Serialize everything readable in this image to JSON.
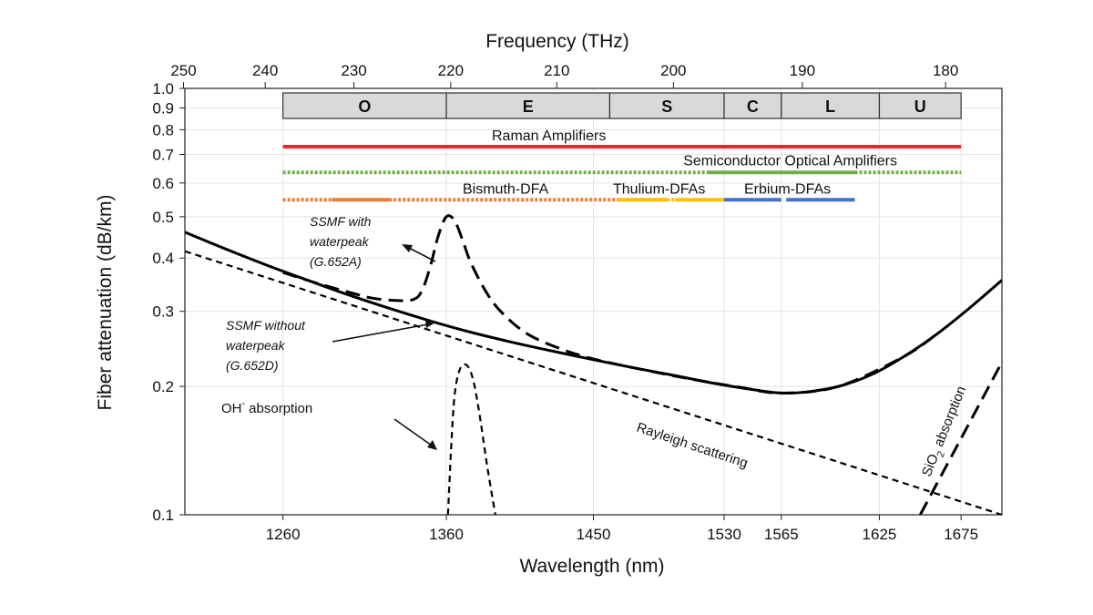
{
  "chart_data": {
    "type": "line",
    "xlabel": "Wavelength (nm)",
    "ylabel": "Fiber attenuation (dB/km)",
    "top_axis_label": "Frequency (THz)",
    "xlim": [
      1200,
      1700
    ],
    "ylim": [
      0.1,
      1.0
    ],
    "y_scale": "log",
    "x_ticks": [
      {
        "value": 1260,
        "label": "1260"
      },
      {
        "value": 1360,
        "label": "1360"
      },
      {
        "value": 1450,
        "label": "1450"
      },
      {
        "value": 1530,
        "label": "1530"
      },
      {
        "value": 1565,
        "label": "1565"
      },
      {
        "value": 1625,
        "label": "1625"
      },
      {
        "value": 1675,
        "label": "1675"
      }
    ],
    "y_ticks": [
      {
        "value": 0.1,
        "label": "0.1"
      },
      {
        "value": 0.2,
        "label": "0.2"
      },
      {
        "value": 0.3,
        "label": "0.3"
      },
      {
        "value": 0.4,
        "label": "0.4"
      },
      {
        "value": 0.5,
        "label": "0.5"
      },
      {
        "value": 0.6,
        "label": "0.6"
      },
      {
        "value": 0.7,
        "label": "0.7"
      },
      {
        "value": 0.8,
        "label": "0.8"
      },
      {
        "value": 0.9,
        "label": "0.9"
      },
      {
        "value": 1.0,
        "label": "1.0"
      }
    ],
    "top_ticks": [
      {
        "value": 250,
        "label": "250"
      },
      {
        "value": 240,
        "label": "240"
      },
      {
        "value": 230,
        "label": "230"
      },
      {
        "value": 220,
        "label": "220"
      },
      {
        "value": 210,
        "label": "210"
      },
      {
        "value": 200,
        "label": "200"
      },
      {
        "value": 190,
        "label": "190"
      },
      {
        "value": 180,
        "label": "180"
      }
    ],
    "grid": true,
    "bands": [
      {
        "label": "O",
        "start": 1260,
        "end": 1360
      },
      {
        "label": "E",
        "start": 1360,
        "end": 1460
      },
      {
        "label": "S",
        "start": 1460,
        "end": 1530
      },
      {
        "label": "C",
        "start": 1530,
        "end": 1565
      },
      {
        "label": "L",
        "start": 1565,
        "end": 1625
      },
      {
        "label": "U",
        "start": 1625,
        "end": 1675
      }
    ],
    "amplifiers": [
      {
        "label": "Raman Amplifiers",
        "y": 0.73,
        "color": "#e8262b",
        "segments": [
          {
            "start": 1260,
            "end": 1675,
            "style": "solid"
          }
        ]
      },
      {
        "label": "Semiconductor Optical Amplifiers",
        "y": 0.635,
        "color": "#70ad47",
        "segments": [
          {
            "start": 1260,
            "end": 1520,
            "style": "dotted"
          },
          {
            "start": 1520,
            "end": 1610,
            "style": "solid"
          },
          {
            "start": 1610,
            "end": 1675,
            "style": "dotted"
          }
        ]
      },
      {
        "label": "Bismuth-DFA",
        "y": 0.548,
        "color": "#ed7d31",
        "segments": [
          {
            "start": 1260,
            "end": 1290,
            "style": "dotted"
          },
          {
            "start": 1290,
            "end": 1325,
            "style": "solid"
          },
          {
            "start": 1325,
            "end": 1465,
            "style": "dotted"
          }
        ]
      },
      {
        "label": "Thulium-DFAs",
        "y": 0.548,
        "color": "#ffc000",
        "segments": [
          {
            "start": 1465,
            "end": 1495,
            "style": "solid"
          },
          {
            "start": 1495,
            "end": 1500,
            "style": "dotted"
          },
          {
            "start": 1500,
            "end": 1530,
            "style": "solid"
          }
        ]
      },
      {
        "label": "Erbium-DFAs",
        "y": 0.548,
        "color": "#4472c4",
        "segments": [
          {
            "start": 1530,
            "end": 1565,
            "style": "solid"
          },
          {
            "start": 1568,
            "end": 1610,
            "style": "solid"
          }
        ]
      }
    ],
    "series": [
      {
        "style": "solid",
        "x": [
          1200,
          1225,
          1250,
          1275,
          1300,
          1325,
          1350,
          1375,
          1400,
          1425,
          1450,
          1475,
          1500,
          1525,
          1550,
          1565,
          1580,
          1600,
          1620,
          1640,
          1660,
          1680,
          1700
        ],
        "y": [
          0.46,
          0.42,
          0.385,
          0.355,
          0.328,
          0.305,
          0.285,
          0.268,
          0.254,
          0.242,
          0.231,
          0.221,
          0.212,
          0.203,
          0.196,
          0.193,
          0.194,
          0.2,
          0.213,
          0.235,
          0.265,
          0.305,
          0.355
        ]
      },
      {
        "style": "long-dash",
        "x": [
          1260,
          1280,
          1300,
          1315,
          1330,
          1340,
          1345,
          1350,
          1355,
          1360,
          1365,
          1370,
          1375,
          1385,
          1395,
          1410,
          1430,
          1450,
          1480,
          1510,
          1540,
          1565,
          1600,
          1640,
          1660
        ],
        "y": [
          0.37,
          0.35,
          0.333,
          0.322,
          0.318,
          0.32,
          0.335,
          0.38,
          0.45,
          0.5,
          0.49,
          0.44,
          0.39,
          0.33,
          0.295,
          0.265,
          0.245,
          0.232,
          0.219,
          0.208,
          0.199,
          0.193,
          0.2,
          0.235,
          0.265
        ]
      },
      {
        "style": "short-dash",
        "x": [
          1200,
          1700
        ],
        "y": [
          0.415,
          0.1
        ]
      },
      {
        "style": "short-dash",
        "x": [
          1361,
          1363,
          1365,
          1368,
          1372,
          1376,
          1380,
          1385,
          1390
        ],
        "y": [
          0.1,
          0.145,
          0.19,
          0.218,
          0.225,
          0.21,
          0.175,
          0.13,
          0.1
        ]
      },
      {
        "style": "long-dash",
        "x": [
          1650,
          1700
        ],
        "y": [
          0.1,
          0.228
        ]
      }
    ],
    "annotations": [
      {
        "lines": [
          "SSMF with",
          "waterpeak",
          "(G.652A)"
        ],
        "italic": true
      },
      {
        "lines": [
          "SSMF without",
          "waterpeak",
          "(G.652D)"
        ],
        "italic": true
      },
      {
        "text": "absorption",
        "prefix": "OH",
        "sup": "-"
      },
      {
        "text": "Rayleigh  scattering"
      },
      {
        "prefix": "SiO",
        "sub": "2",
        "text": " absorption"
      }
    ]
  }
}
